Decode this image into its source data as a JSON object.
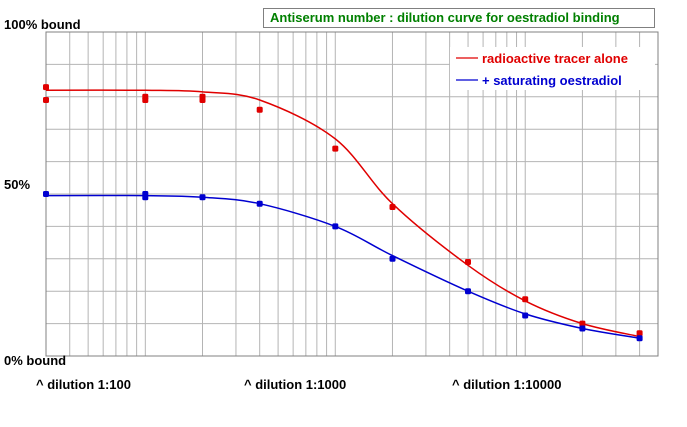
{
  "title": "Antiserum number   : dilution curve for oestradiol binding",
  "colors": {
    "tracer": "#e00000",
    "saturating": "#0000d0",
    "grid": "#b4b4b4",
    "title": "#008000"
  },
  "chart_data": {
    "type": "line",
    "x_scale": "log",
    "xlim": [
      30,
      50000
    ],
    "ylim": [
      0,
      100
    ],
    "grid": true,
    "legend_position": "top-right",
    "y_tick_labels": [
      "100% bound",
      "50%",
      "0% bound"
    ],
    "x_tick_labels": [
      "^ dilution 1:100",
      "^ dilution 1:1000",
      "^ dilution 1:10000"
    ],
    "x": [
      30,
      100,
      200,
      400,
      1000,
      2000,
      5000,
      10000,
      20000,
      40000
    ],
    "series": [
      {
        "name": "radioactive tracer alone",
        "color": "#e00000",
        "points": [
          [
            30,
            83
          ],
          [
            30,
            79
          ],
          [
            100,
            80
          ],
          [
            100,
            79
          ],
          [
            200,
            80
          ],
          [
            200,
            79
          ],
          [
            400,
            76
          ],
          [
            1000,
            64
          ],
          [
            2000,
            46
          ],
          [
            5000,
            29
          ],
          [
            10000,
            17.5
          ],
          [
            20000,
            10
          ],
          [
            40000,
            7
          ]
        ],
        "curve": [
          [
            30,
            82
          ],
          [
            100,
            82
          ],
          [
            200,
            81.5
          ],
          [
            400,
            79
          ],
          [
            1000,
            67
          ],
          [
            2000,
            47
          ],
          [
            5000,
            28
          ],
          [
            10000,
            17
          ],
          [
            20000,
            10
          ],
          [
            40000,
            6
          ]
        ]
      },
      {
        "name": "+ saturating oestradiol",
        "color": "#0000d0",
        "points": [
          [
            30,
            50
          ],
          [
            100,
            50
          ],
          [
            100,
            49
          ],
          [
            200,
            49
          ],
          [
            400,
            47
          ],
          [
            1000,
            40
          ],
          [
            2000,
            30
          ],
          [
            5000,
            20
          ],
          [
            10000,
            12.5
          ],
          [
            20000,
            8.5
          ],
          [
            40000,
            5.5
          ]
        ],
        "curve": [
          [
            30,
            49.5
          ],
          [
            100,
            49.5
          ],
          [
            200,
            49
          ],
          [
            400,
            47
          ],
          [
            1000,
            40
          ],
          [
            2000,
            31
          ],
          [
            5000,
            20
          ],
          [
            10000,
            13
          ],
          [
            20000,
            8.5
          ],
          [
            40000,
            5.5
          ]
        ]
      }
    ]
  }
}
